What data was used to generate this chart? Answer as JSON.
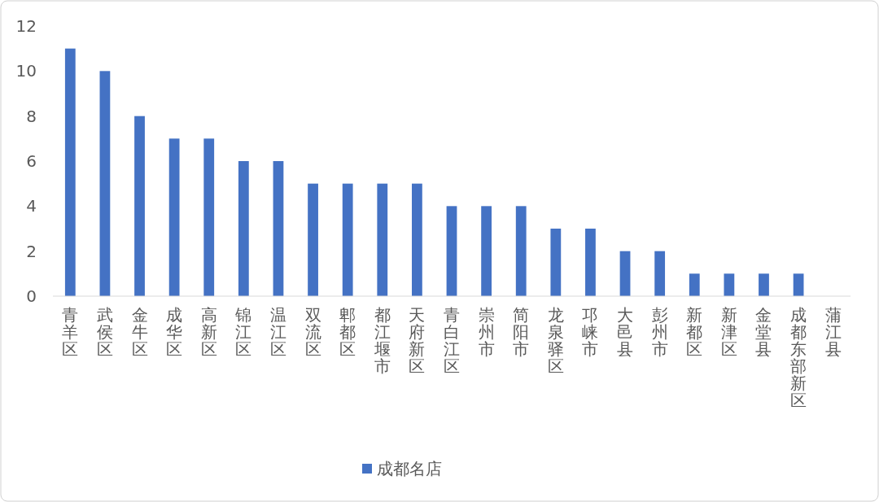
{
  "chart_data": {
    "type": "bar",
    "categories": [
      "青羊区",
      "武侯区",
      "金牛区",
      "成华区",
      "高新区",
      "锦江区",
      "温江区",
      "双流区",
      "郫都区",
      "都江堰市",
      "天府新区",
      "青白江区",
      "崇州市",
      "简阳市",
      "龙泉驿区",
      "邛崃市",
      "大邑县",
      "彭州市",
      "新都区",
      "新津区",
      "金堂县",
      "成都东部新区",
      "蒲江县"
    ],
    "series": [
      {
        "name": "成都名店",
        "color": "#4472c4",
        "values": [
          11,
          10,
          8,
          7,
          7,
          6,
          6,
          5,
          5,
          5,
          5,
          4,
          4,
          4,
          3,
          3,
          2,
          2,
          1,
          1,
          1,
          1,
          0
        ]
      }
    ],
    "ylim": [
      0,
      12
    ],
    "yticks": [
      0,
      2,
      4,
      6,
      8,
      10,
      12
    ],
    "legend": "bottom"
  }
}
